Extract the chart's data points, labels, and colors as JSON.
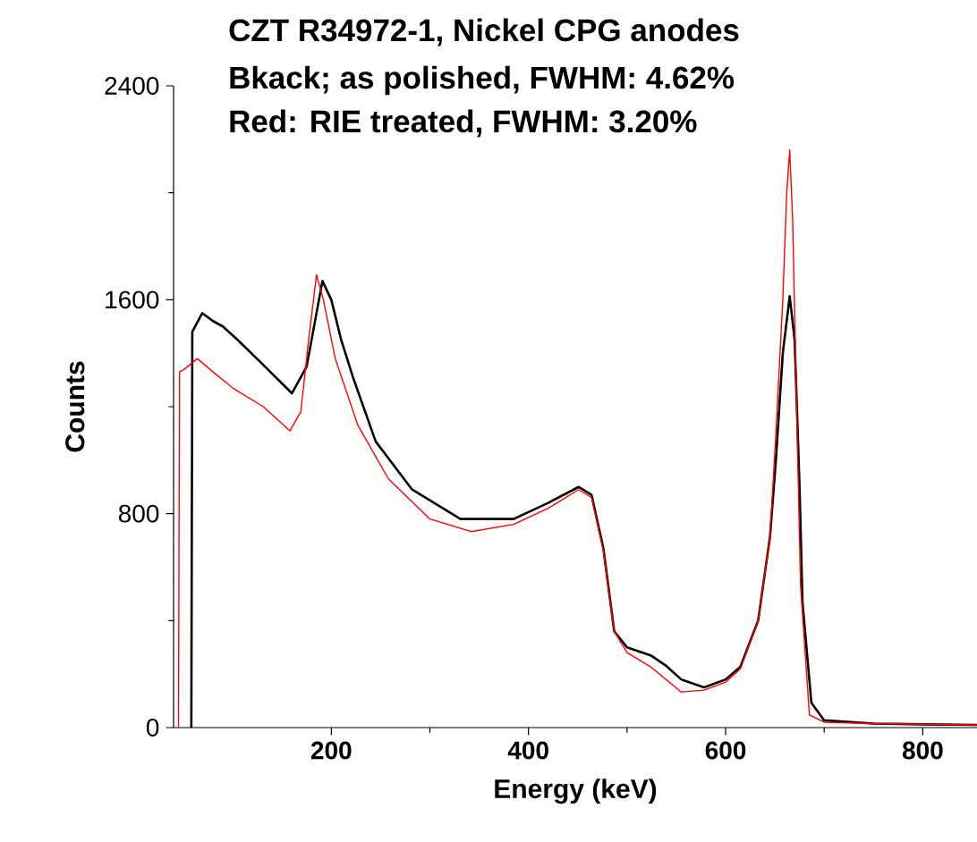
{
  "chart_data": {
    "type": "line",
    "title": "CZT R34972-1, Nickel CPG anodes",
    "subtitle": "Bkack; as polished, FWHM: 4.62%",
    "annotations": [
      "Red: RIE treated, FWHM: 3.20%"
    ],
    "xlabel": "Energy (keV)",
    "ylabel": "Counts",
    "xlim": [
      40,
      855
    ],
    "ylim": [
      0,
      2400
    ],
    "xticks": [
      200,
      400,
      600,
      800
    ],
    "yticks": [
      0,
      800,
      1600,
      2400
    ],
    "grid": false,
    "marker": "none",
    "line_style": "solid",
    "series": [
      {
        "color": "#000000",
        "x": [
          58,
          59,
          69,
          80,
          90,
          105,
          130,
          160,
          175,
          185,
          191,
          200,
          210,
          222,
          245,
          282,
          331,
          385,
          420,
          451,
          464,
          476,
          487,
          500,
          524,
          540,
          555,
          578,
          600,
          615,
          633,
          645,
          651,
          658,
          665,
          670,
          675,
          678,
          687,
          700,
          750,
          800,
          855
        ],
        "values": [
          0,
          1480,
          1550,
          1520,
          1500,
          1450,
          1360,
          1250,
          1350,
          1550,
          1670,
          1600,
          1450,
          1310,
          1070,
          890,
          780,
          780,
          840,
          900,
          870,
          670,
          360,
          300,
          270,
          230,
          180,
          150,
          180,
          227,
          400,
          713,
          1000,
          1400,
          1613,
          1450,
          900,
          467,
          93,
          27,
          15,
          12,
          10
        ]
      },
      {
        "color": "#ff0000",
        "x": [
          45,
          46,
          51,
          64,
          80,
          100,
          131,
          158,
          169,
          177,
          185,
          192,
          204,
          227,
          258,
          300,
          342,
          385,
          420,
          451,
          464,
          476,
          487,
          500,
          524,
          555,
          578,
          600,
          615,
          633,
          645,
          651,
          658,
          662,
          665,
          668,
          672,
          676,
          685,
          700,
          750,
          855
        ],
        "values": [
          0,
          1330,
          1340,
          1380,
          1330,
          1270,
          1200,
          1110,
          1180,
          1450,
          1693,
          1600,
          1380,
          1130,
          930,
          780,
          733,
          760,
          820,
          890,
          860,
          660,
          360,
          280,
          227,
          133,
          140,
          170,
          220,
          400,
          713,
          1100,
          1600,
          2000,
          2160,
          1900,
          1200,
          533,
          47,
          20,
          15,
          10
        ]
      }
    ]
  }
}
